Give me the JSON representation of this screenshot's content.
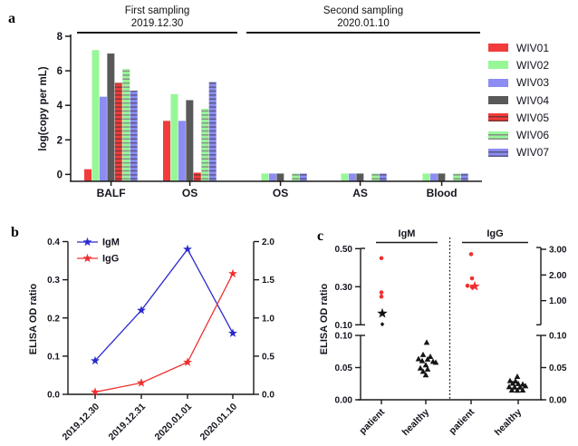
{
  "panels": {
    "a": "a",
    "b": "b",
    "c": "c"
  },
  "chart_data": [
    {
      "id": "a",
      "type": "bar",
      "header_first": {
        "title": "First sampling",
        "date": "2019.12.30"
      },
      "header_second": {
        "title": "Second sampling",
        "date": "2020.01.10"
      },
      "ylabel": "log(copy per mL)",
      "ylim": [
        -0.4,
        8
      ],
      "yticks": [
        0,
        2,
        4,
        6,
        8
      ],
      "categories": [
        "BALF",
        "OS",
        "OS",
        "AS",
        "Blood"
      ],
      "series": [
        {
          "name": "WIV01",
          "color": "#f23b3b",
          "striped": false,
          "stripe_color": null,
          "values": [
            0.3,
            3.1,
            null,
            null,
            null
          ]
        },
        {
          "name": "WIV02",
          "color": "#97f797",
          "striped": false,
          "stripe_color": null,
          "values": [
            7.2,
            4.65,
            0.05,
            0.05,
            0.05
          ]
        },
        {
          "name": "WIV03",
          "color": "#8c8cf2",
          "striped": false,
          "stripe_color": null,
          "values": [
            4.5,
            3.1,
            0.05,
            0.05,
            0.05
          ]
        },
        {
          "name": "WIV04",
          "color": "#595959",
          "striped": false,
          "stripe_color": null,
          "values": [
            7.0,
            4.3,
            0.05,
            0.05,
            0.05
          ]
        },
        {
          "name": "WIV05",
          "color": "#f23b3b",
          "striped": true,
          "stripe_color": "#7a3434",
          "values": [
            5.3,
            0.1,
            null,
            null,
            null
          ]
        },
        {
          "name": "WIV06",
          "color": "#97f797",
          "striped": true,
          "stripe_color": "#8a8a8a",
          "values": [
            6.1,
            3.8,
            0.05,
            0.05,
            0.05
          ]
        },
        {
          "name": "WIV07",
          "color": "#8c8cf2",
          "striped": true,
          "stripe_color": "#56567e",
          "values": [
            4.85,
            5.35,
            0.05,
            0.05,
            0.05
          ]
        }
      ]
    },
    {
      "id": "b",
      "type": "line",
      "ylabel": "ELISA OD ratio",
      "categories": [
        "2019.12.30",
        "2019.12.31",
        "2020.01.01",
        "2020.01.10"
      ],
      "left_axis": {
        "lim": [
          0,
          0.4
        ],
        "ticks": [
          "0.0",
          "0.1",
          "0.2",
          "0.3",
          "0.4"
        ]
      },
      "right_axis": {
        "lim": [
          0,
          2.0
        ],
        "ticks": [
          "0.0",
          "0.5",
          "1.0",
          "1.5",
          "2.0"
        ]
      },
      "series": [
        {
          "name": "IgM",
          "color": "#2a2ace",
          "axis": "left",
          "values": [
            0.088,
            0.22,
            0.38,
            0.16
          ]
        },
        {
          "name": "IgG",
          "color": "#f03030",
          "axis": "right",
          "values": [
            0.03,
            0.15,
            0.42,
            1.58
          ]
        }
      ]
    },
    {
      "id": "c",
      "type": "scatter",
      "ylabel": "ELISA OD ratio",
      "section_titles": [
        "IgM",
        "IgG"
      ],
      "categories": [
        "patient",
        "healthy",
        "patient",
        "healthy"
      ],
      "left_axis": {
        "upper": {
          "lim": [
            0.1,
            0.5
          ],
          "ticks": [
            "0.50",
            "0.30",
            "0.10"
          ]
        },
        "lower": {
          "lim": [
            0.0,
            0.1
          ],
          "ticks": [
            "0.10",
            "0.05",
            "0.00"
          ]
        }
      },
      "right_axis": {
        "upper": {
          "lim": [
            0.06,
            3.0
          ],
          "ticks": [
            "3.00",
            "2.00",
            "1.00"
          ]
        },
        "lower": {
          "lim": [
            0.0,
            0.1
          ],
          "ticks": [
            "0.10",
            "0.05",
            "0.00"
          ]
        }
      },
      "groups": [
        {
          "name": "IgM patient",
          "axis": "left",
          "sym": "circle",
          "color": "#f03030",
          "points": [
            {
              "dx": 0,
              "v": 0.45
            },
            {
              "dx": 0,
              "v": 0.27
            },
            {
              "dx": 0,
              "v": 0.248
            },
            {
              "dx": 1,
              "v": 0.16,
              "sym": "star",
              "color": "#111111"
            },
            {
              "dx": 1,
              "v": 0.103,
              "sym": "diamond",
              "color": "#111111"
            }
          ]
        },
        {
          "name": "IgM healthy",
          "axis": "left",
          "sym": "triangle",
          "color": "#151515",
          "points": [
            {
              "dx": 1,
              "v": 0.089
            },
            {
              "dx": -3,
              "v": 0.07
            },
            {
              "dx": 5,
              "v": 0.067
            },
            {
              "dx": -8,
              "v": 0.0635
            },
            {
              "dx": 2,
              "v": 0.063
            },
            {
              "dx": -4,
              "v": 0.0605
            },
            {
              "dx": 8,
              "v": 0.0595
            },
            {
              "dx": 11,
              "v": 0.058
            },
            {
              "dx": 0,
              "v": 0.054
            },
            {
              "dx": -6,
              "v": 0.049
            },
            {
              "dx": 2,
              "v": 0.0475
            },
            {
              "dx": -3,
              "v": 0.044
            },
            {
              "dx": 0,
              "v": 0.0385
            }
          ]
        },
        {
          "name": "IgG patient",
          "axis": "right",
          "sym": "circle",
          "color": "#f03030",
          "points": [
            {
              "dx": 0,
              "v": 2.81
            },
            {
              "dx": 1,
              "v": 1.87
            },
            {
              "dx": -4,
              "v": 1.58
            },
            {
              "dx": 1,
              "v": 1.53
            },
            {
              "dx": 4,
              "v": 1.56,
              "sym": "star"
            }
          ]
        },
        {
          "name": "IgG healthy",
          "axis": "right",
          "sym": "triangle",
          "color": "#151515",
          "points": [
            {
              "dx": -1,
              "v": 0.036
            },
            {
              "dx": -9,
              "v": 0.0295
            },
            {
              "dx": -3,
              "v": 0.029
            },
            {
              "dx": -6,
              "v": 0.0255
            },
            {
              "dx": 0,
              "v": 0.025
            },
            {
              "dx": 5,
              "v": 0.024
            },
            {
              "dx": 8,
              "v": 0.0215
            },
            {
              "dx": -10,
              "v": 0.02
            },
            {
              "dx": -4,
              "v": 0.0195
            },
            {
              "dx": 2,
              "v": 0.0195
            },
            {
              "dx": -7,
              "v": 0.015
            },
            {
              "dx": -1,
              "v": 0.0145
            },
            {
              "dx": 5,
              "v": 0.015
            }
          ]
        }
      ]
    }
  ]
}
